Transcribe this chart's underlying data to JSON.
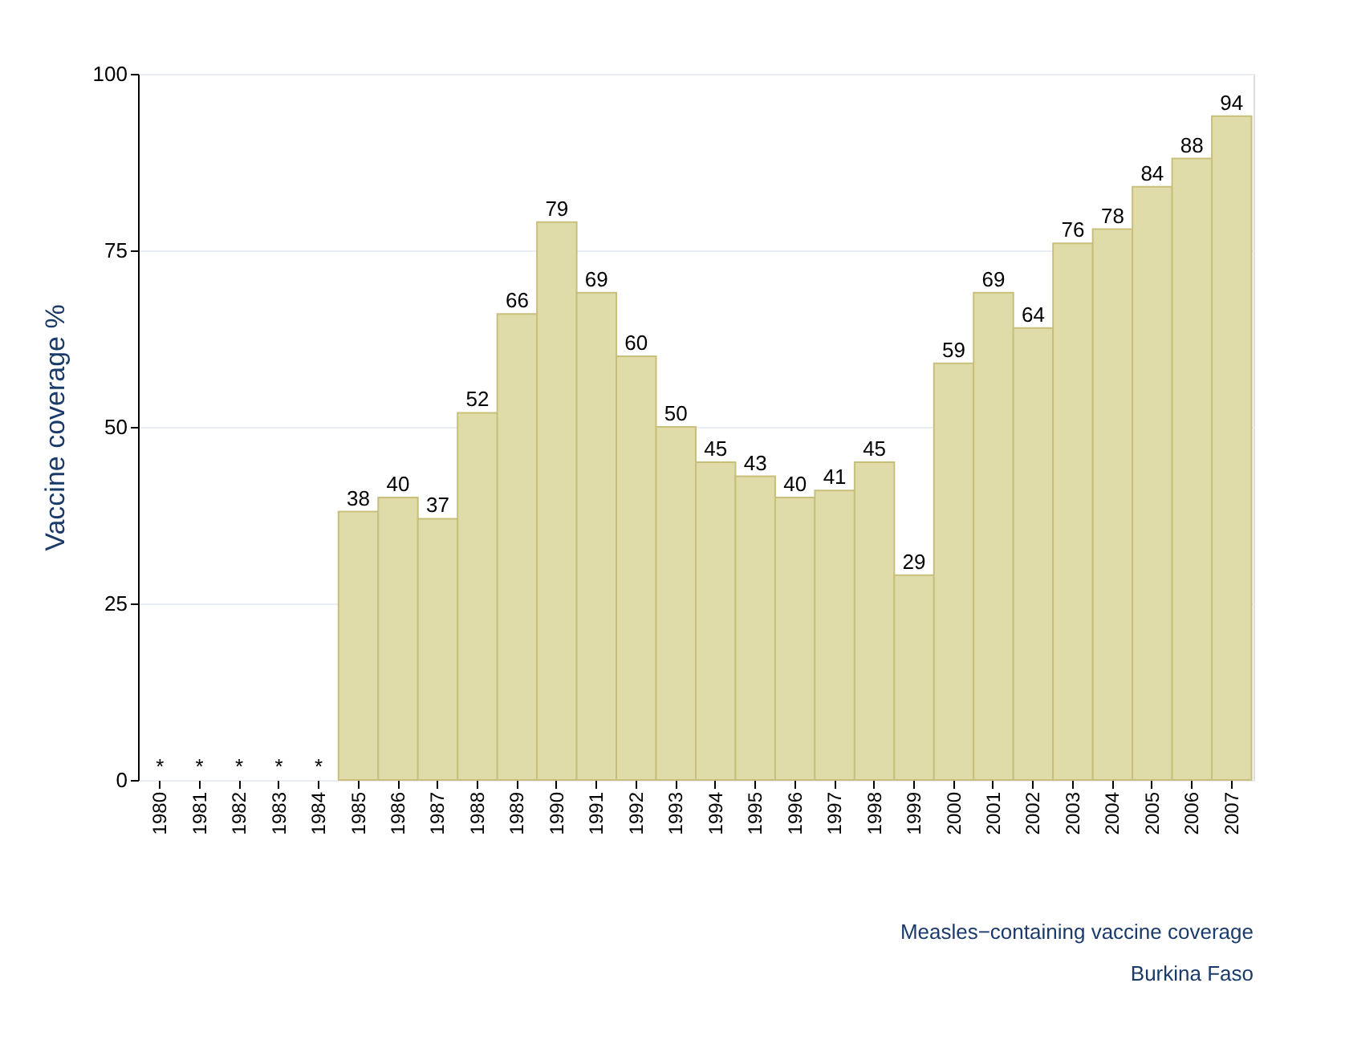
{
  "chart_data": {
    "type": "bar",
    "categories": [
      "1980",
      "1981",
      "1982",
      "1983",
      "1984",
      "1985",
      "1986",
      "1987",
      "1988",
      "1989",
      "1990",
      "1991",
      "1992",
      "1993",
      "1994",
      "1995",
      "1996",
      "1997",
      "1998",
      "1999",
      "2000",
      "2001",
      "2002",
      "2003",
      "2004",
      "2005",
      "2006",
      "2007"
    ],
    "values": [
      null,
      null,
      null,
      null,
      null,
      38,
      40,
      37,
      52,
      66,
      79,
      69,
      60,
      50,
      45,
      43,
      40,
      41,
      45,
      29,
      59,
      69,
      64,
      76,
      78,
      84,
      88,
      94
    ],
    "value_labels": [
      "*",
      "*",
      "*",
      "*",
      "*",
      "38",
      "40",
      "37",
      "52",
      "66",
      "79",
      "69",
      "60",
      "50",
      "45",
      "43",
      "40",
      "41",
      "45",
      "29",
      "59",
      "69",
      "64",
      "76",
      "78",
      "84",
      "88",
      "94"
    ],
    "color": "#e0dcaa",
    "ylabel": "Vaccine coverage %",
    "ylim": [
      0,
      100
    ],
    "yticks": [
      0,
      25,
      50,
      75,
      100
    ],
    "grid": "y",
    "annotations": [
      "Measles−containing vaccine coverage",
      "Burkina Faso"
    ]
  }
}
